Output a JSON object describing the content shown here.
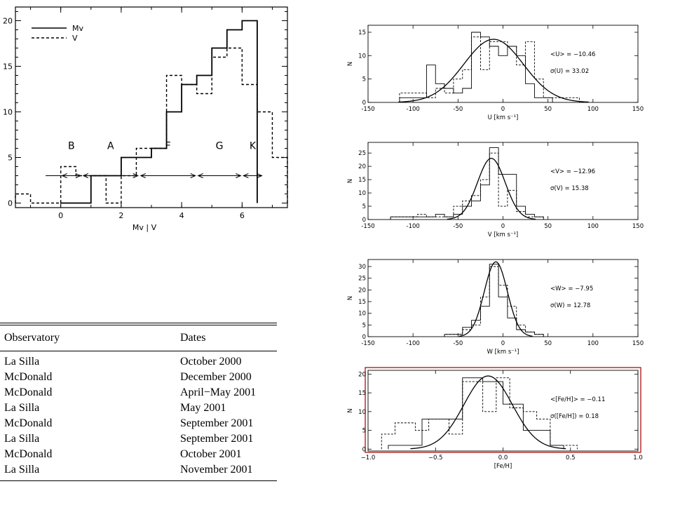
{
  "colors": {
    "axis": "#000000",
    "highlight_frame": "#b22222"
  },
  "chart_data": [
    {
      "type": "step-histogram",
      "xlabel": "Mv | V",
      "ylabel": "",
      "xlim": [
        -1.5,
        7.5
      ],
      "ylim": [
        -0.5,
        21.5
      ],
      "xticks": [
        0,
        2,
        4,
        6
      ],
      "yticks": [
        0,
        5,
        10,
        15,
        20
      ],
      "series": [
        {
          "name": "Mv",
          "style": "solid",
          "bins": [
            [
              0,
              1,
              0
            ],
            [
              1,
              1.5,
              3
            ],
            [
              1.5,
              2,
              3
            ],
            [
              2,
              2.5,
              5
            ],
            [
              2.5,
              3,
              5
            ],
            [
              3,
              3.5,
              6
            ],
            [
              3.5,
              4,
              10
            ],
            [
              4,
              4.5,
              13
            ],
            [
              4.5,
              5,
              14
            ],
            [
              5,
              5.5,
              17
            ],
            [
              5.5,
              6,
              19
            ],
            [
              6,
              6.5,
              20
            ]
          ]
        },
        {
          "name": "V",
          "style": "dashed",
          "bins": [
            [
              -1.5,
              -1,
              1
            ],
            [
              -1,
              -0.5,
              0
            ],
            [
              -0.5,
              0,
              0
            ],
            [
              0,
              0.5,
              4
            ],
            [
              0.5,
              1,
              3
            ],
            [
              1,
              1.5,
              3
            ],
            [
              1.5,
              2,
              0
            ],
            [
              2,
              2.5,
              3
            ],
            [
              2.5,
              3,
              6
            ],
            [
              3,
              3.5,
              6
            ],
            [
              3.5,
              4,
              14
            ],
            [
              4,
              4.5,
              13
            ],
            [
              4.5,
              5,
              12
            ],
            [
              5,
              5.5,
              16
            ],
            [
              5.5,
              6,
              17
            ],
            [
              6,
              6.5,
              13
            ],
            [
              6.5,
              7,
              10
            ],
            [
              7,
              7.5,
              5
            ]
          ]
        }
      ],
      "spectral_classes": [
        {
          "label": "B",
          "x0": 0,
          "x1": 0.7
        },
        {
          "label": "A",
          "x0": 0.7,
          "x1": 2.6
        },
        {
          "label": "F",
          "x0": 2.6,
          "x1": 4.5
        },
        {
          "label": "G",
          "x0": 4.5,
          "x1": 6.0
        },
        {
          "label": "K",
          "x0": 6.0,
          "x1": 6.7
        }
      ],
      "legend": {
        "placement": "top-left"
      }
    },
    {
      "type": "histogram-with-gaussian",
      "xlabel": "U [km s⁻¹]",
      "ylabel": "N",
      "xlim": [
        -150,
        150
      ],
      "ylim": [
        0,
        16.5
      ],
      "xticks": [
        -150,
        -100,
        -50,
        0,
        50,
        100,
        150
      ],
      "yticks": [
        0,
        5,
        10,
        15
      ],
      "annotations": [
        "<U> = −10.46",
        "σ(U) =  33.02"
      ],
      "gaussian": {
        "mean": -10.46,
        "sigma": 33.02,
        "amplitude": 13.5
      },
      "solid_bins": [
        [
          -115,
          -105,
          1
        ],
        [
          -105,
          -95,
          1
        ],
        [
          -95,
          -85,
          1
        ],
        [
          -85,
          -75,
          8
        ],
        [
          -75,
          -65,
          4
        ],
        [
          -65,
          -55,
          3
        ],
        [
          -55,
          -45,
          2
        ],
        [
          -45,
          -35,
          3
        ],
        [
          -35,
          -25,
          15
        ],
        [
          -25,
          -15,
          14
        ],
        [
          -15,
          -5,
          12
        ],
        [
          -5,
          5,
          10
        ],
        [
          5,
          15,
          12
        ],
        [
          15,
          25,
          10
        ],
        [
          25,
          35,
          4
        ],
        [
          35,
          45,
          1
        ],
        [
          45,
          55,
          1
        ]
      ],
      "dashed_bins": [
        [
          -115,
          -105,
          2
        ],
        [
          -105,
          -95,
          2
        ],
        [
          -95,
          -85,
          2
        ],
        [
          -85,
          -75,
          1
        ],
        [
          -75,
          -65,
          3
        ],
        [
          -65,
          -55,
          2
        ],
        [
          -55,
          -45,
          5
        ],
        [
          -45,
          -35,
          7
        ],
        [
          -35,
          -25,
          14
        ],
        [
          -25,
          -15,
          7
        ],
        [
          -15,
          -5,
          13
        ],
        [
          -5,
          5,
          13
        ],
        [
          5,
          15,
          12
        ],
        [
          15,
          25,
          8
        ],
        [
          25,
          35,
          13
        ],
        [
          35,
          45,
          5
        ],
        [
          45,
          55,
          1
        ],
        [
          55,
          65,
          1
        ],
        [
          65,
          75,
          1
        ],
        [
          75,
          85,
          1
        ],
        [
          85,
          95,
          0
        ]
      ]
    },
    {
      "type": "histogram-with-gaussian",
      "xlabel": "V [km s⁻¹]",
      "ylabel": "N",
      "xlim": [
        -150,
        150
      ],
      "ylim": [
        0,
        29
      ],
      "xticks": [
        -150,
        -100,
        -50,
        0,
        50,
        100,
        150
      ],
      "yticks": [
        0,
        5,
        10,
        15,
        20,
        25
      ],
      "annotations": [
        "<V> = −12.96",
        "σ(V) =  15.38"
      ],
      "gaussian": {
        "mean": -12.96,
        "sigma": 15.38,
        "amplitude": 23
      },
      "solid_bins": [
        [
          -125,
          -115,
          1
        ],
        [
          -115,
          -105,
          1
        ],
        [
          -105,
          -95,
          1
        ],
        [
          -95,
          -85,
          1
        ],
        [
          -85,
          -75,
          1
        ],
        [
          -75,
          -65,
          2
        ],
        [
          -65,
          -55,
          1
        ],
        [
          -55,
          -45,
          2
        ],
        [
          -45,
          -35,
          5
        ],
        [
          -35,
          -25,
          7
        ],
        [
          -25,
          -15,
          13
        ],
        [
          -15,
          -5,
          27
        ],
        [
          -5,
          5,
          17
        ],
        [
          5,
          15,
          17
        ],
        [
          15,
          25,
          5
        ],
        [
          25,
          35,
          2
        ],
        [
          35,
          45,
          1
        ]
      ],
      "dashed_bins": [
        [
          -125,
          -115,
          1
        ],
        [
          -115,
          -105,
          1
        ],
        [
          -105,
          -95,
          1
        ],
        [
          -95,
          -85,
          2
        ],
        [
          -85,
          -75,
          1
        ],
        [
          -75,
          -65,
          1
        ],
        [
          -65,
          -55,
          1
        ],
        [
          -55,
          -45,
          5
        ],
        [
          -45,
          -35,
          7
        ],
        [
          -35,
          -25,
          9
        ],
        [
          -25,
          -15,
          15
        ],
        [
          -15,
          -5,
          25
        ],
        [
          -5,
          5,
          5
        ],
        [
          5,
          15,
          11
        ],
        [
          15,
          25,
          3
        ],
        [
          25,
          35,
          1
        ],
        [
          35,
          45,
          1
        ]
      ]
    },
    {
      "type": "histogram-with-gaussian",
      "xlabel": "W [km s⁻¹]",
      "ylabel": "N",
      "xlim": [
        -150,
        150
      ],
      "ylim": [
        0,
        33
      ],
      "xticks": [
        -150,
        -100,
        -50,
        0,
        50,
        100,
        150
      ],
      "yticks": [
        0,
        5,
        10,
        15,
        20,
        25,
        30
      ],
      "annotations": [
        "<W> =  −7.95",
        "σ(W) =  12.78"
      ],
      "gaussian": {
        "mean": -7.95,
        "sigma": 12.78,
        "amplitude": 32
      },
      "solid_bins": [
        [
          -65,
          -55,
          1
        ],
        [
          -55,
          -45,
          1
        ],
        [
          -45,
          -35,
          4
        ],
        [
          -35,
          -25,
          7
        ],
        [
          -25,
          -15,
          13
        ],
        [
          -15,
          -5,
          31
        ],
        [
          -5,
          5,
          17
        ],
        [
          5,
          15,
          8
        ],
        [
          15,
          25,
          3
        ],
        [
          25,
          35,
          2
        ],
        [
          35,
          45,
          1
        ]
      ],
      "dashed_bins": [
        [
          -65,
          -55,
          1
        ],
        [
          -55,
          -45,
          1
        ],
        [
          -45,
          -35,
          3
        ],
        [
          -35,
          -25,
          5
        ],
        [
          -25,
          -15,
          17
        ],
        [
          -15,
          -5,
          30
        ],
        [
          -5,
          5,
          22
        ],
        [
          5,
          15,
          13
        ],
        [
          15,
          25,
          5
        ],
        [
          25,
          35,
          2
        ],
        [
          35,
          45,
          1
        ]
      ]
    },
    {
      "type": "histogram-with-gaussian",
      "xlabel": "[Fe/H]",
      "ylabel": "N",
      "xlim": [
        -1.0,
        1.0
      ],
      "ylim": [
        -0.5,
        21
      ],
      "xticks": [
        -1.0,
        -0.5,
        0.0,
        0.5,
        1.0
      ],
      "xtick_labels": [
        "−1.0",
        "−0.5",
        "0.0",
        "0.5",
        "1.0"
      ],
      "yticks": [
        0,
        5,
        10,
        15,
        20
      ],
      "annotations": [
        "<[Fe/H]> =  −0.11",
        "σ([Fe/H]) =  0.18"
      ],
      "gaussian": {
        "mean": -0.11,
        "sigma": 0.18,
        "amplitude": 19.5
      },
      "solid_bins": [
        [
          -0.85,
          -0.6,
          1
        ],
        [
          -0.6,
          -0.45,
          8
        ],
        [
          -0.45,
          -0.3,
          8
        ],
        [
          -0.3,
          -0.15,
          19
        ],
        [
          -0.15,
          0.0,
          18
        ],
        [
          0.0,
          0.15,
          12
        ],
        [
          0.15,
          0.35,
          5
        ],
        [
          0.35,
          0.45,
          1
        ]
      ],
      "dashed_bins": [
        [
          -0.9,
          -0.8,
          4
        ],
        [
          -0.8,
          -0.65,
          7
        ],
        [
          -0.65,
          -0.55,
          5
        ],
        [
          -0.55,
          -0.4,
          8
        ],
        [
          -0.4,
          -0.3,
          4
        ],
        [
          -0.3,
          -0.15,
          18
        ],
        [
          -0.15,
          -0.05,
          10
        ],
        [
          -0.05,
          0.05,
          19
        ],
        [
          0.05,
          0.15,
          11
        ],
        [
          0.15,
          0.25,
          10
        ],
        [
          0.25,
          0.35,
          8
        ],
        [
          0.35,
          0.45,
          1
        ],
        [
          0.45,
          0.55,
          1
        ]
      ]
    }
  ],
  "table": {
    "headers": [
      "Observatory",
      "Dates"
    ],
    "rows": [
      [
        "La Silla",
        "October 2000"
      ],
      [
        "McDonald",
        "December 2000"
      ],
      [
        "McDonald",
        "April−May 2001"
      ],
      [
        "La Silla",
        "May 2001"
      ],
      [
        "McDonald",
        "September 2001"
      ],
      [
        "La Silla",
        "September 2001"
      ],
      [
        "McDonald",
        "October 2001"
      ],
      [
        "La Silla",
        "November 2001"
      ]
    ]
  }
}
